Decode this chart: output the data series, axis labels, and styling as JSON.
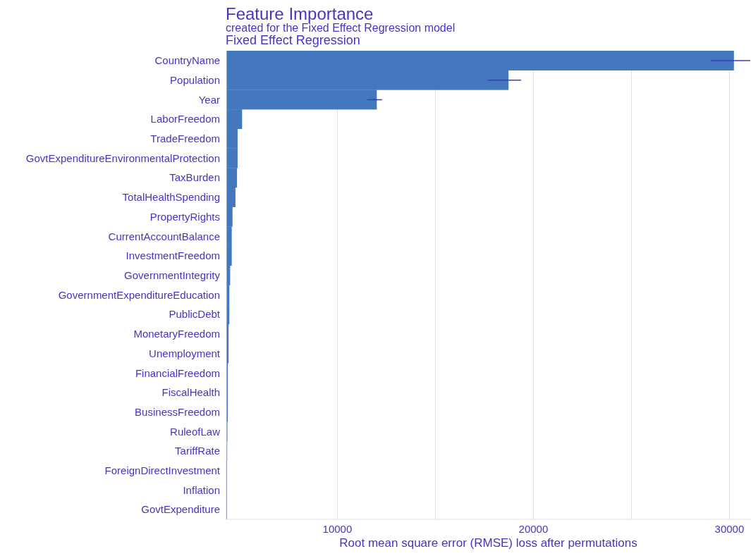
{
  "chart_data": {
    "type": "bar",
    "orientation": "horizontal",
    "title": "Feature Importance",
    "subtitle": "created for the Fixed Effect Regression model",
    "annotations": [
      "Fixed Effect Regression"
    ],
    "xlabel": "Root mean square error (RMSE) loss after permutations",
    "categories": [
      "CountryName",
      "Population",
      "Year",
      "LaborFreedom",
      "TradeFreedom",
      "GovtExpenditureEnvironmentalProtection",
      "TaxBurden",
      "TotalHealthSpending",
      "PropertyRights",
      "CurrentAccountBalance",
      "InvestmentFreedom",
      "GovernmentIntegrity",
      "GovernmentExpenditureEducation",
      "PublicDebt",
      "MonetaryFreedom",
      "Unemployment",
      "FinancialFreedom",
      "FiscalHealth",
      "BusinessFreedom",
      "RuleofLaw",
      "TariffRate",
      "ForeignDirectInvestment",
      "Inflation",
      "GovtExpenditure"
    ],
    "values": [
      25880,
      14380,
      7660,
      790,
      560,
      560,
      530,
      450,
      300,
      260,
      260,
      180,
      140,
      140,
      100,
      100,
      60,
      60,
      60,
      40,
      10,
      -20,
      -20,
      -20
    ],
    "base": [
      4350,
      4350,
      4350,
      4350,
      4350,
      4350,
      4350,
      4350,
      4350,
      4350,
      4350,
      4350,
      4350,
      4350,
      4350,
      4350,
      4350,
      4350,
      4350,
      4350,
      4350,
      4350,
      4350,
      4350
    ],
    "errors": [
      [
        29050,
        31060
      ],
      [
        17670,
        19370
      ],
      [
        11520,
        12280
      ],
      null,
      null,
      null,
      null,
      null,
      null,
      null,
      null,
      null,
      null,
      null,
      null,
      null,
      null,
      null,
      null,
      null,
      null,
      null,
      null,
      null
    ],
    "color": "#4378bf",
    "xlim": [
      4300,
      31100
    ],
    "xticks": [
      10000,
      {
        "value": 15000,
        "label": null
      },
      20000,
      {
        "value": 25000,
        "label": null
      },
      30000
    ],
    "grid": "x"
  }
}
